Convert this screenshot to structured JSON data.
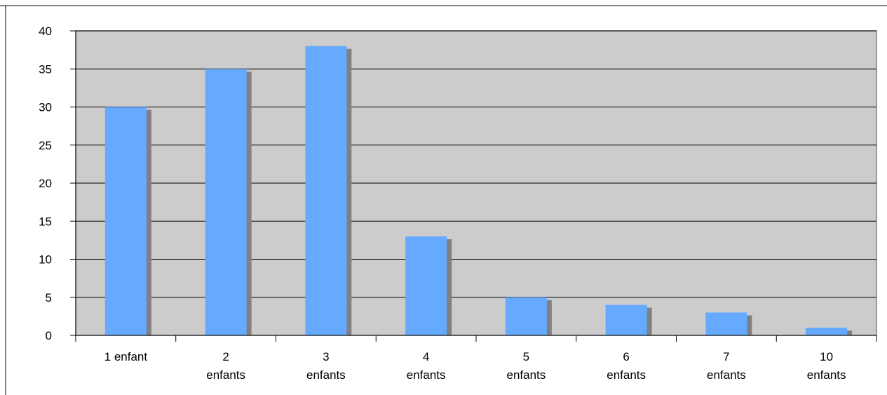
{
  "chart_data": {
    "type": "bar",
    "categories": [
      [
        "1 enfant"
      ],
      [
        "2",
        "enfants"
      ],
      [
        "3",
        "enfants"
      ],
      [
        "4",
        "enfants"
      ],
      [
        "5",
        "enfants"
      ],
      [
        "6",
        "enfants"
      ],
      [
        "7",
        "enfants"
      ],
      [
        "10",
        "enfants"
      ]
    ],
    "values": [
      30,
      35,
      38,
      13,
      5,
      4,
      3,
      1
    ],
    "ylim": [
      0,
      40
    ],
    "yticks": [
      "0",
      "5",
      "10",
      "15",
      "20",
      "25",
      "30",
      "35",
      "40"
    ],
    "grid": true,
    "legend": "none",
    "colors": {
      "bar": "#66aaff",
      "bar_shadow": "#808080",
      "plot_background": "#cccccc",
      "gridline": "#000000",
      "axis": "#000000"
    }
  }
}
